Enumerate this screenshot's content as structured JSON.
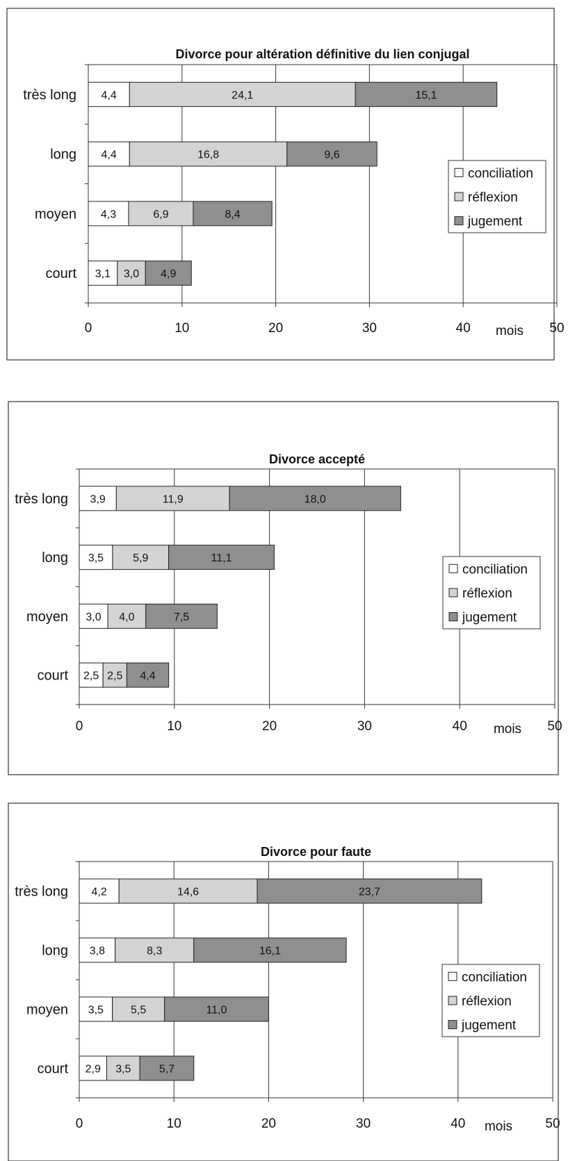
{
  "chart_data": [
    {
      "type": "bar",
      "orientation": "horizontal",
      "stacked": true,
      "title": "Divorce pour altération définitive du lien conjugal",
      "xlabel": "mois",
      "xlim": [
        0,
        50
      ],
      "x_ticks": [
        "0",
        "10",
        "20",
        "30",
        "40",
        "50"
      ],
      "grid": true,
      "legend_position": "right",
      "categories": [
        "très long",
        "long",
        "moyen",
        "court"
      ],
      "series": [
        {
          "name": "conciliation",
          "color": "#ffffff",
          "values": [
            4.4,
            4.4,
            4.3,
            3.1
          ],
          "labels": [
            "4,4",
            "4,4",
            "4,3",
            "3,1"
          ]
        },
        {
          "name": "réflexion",
          "color": "#d3d3d3",
          "values": [
            24.1,
            16.8,
            6.9,
            3.0
          ],
          "labels": [
            "24,1",
            "16,8",
            "6,9",
            "3,0"
          ]
        },
        {
          "name": "jugement",
          "color": "#8f8f8f",
          "values": [
            15.1,
            9.6,
            8.4,
            4.9
          ],
          "labels": [
            "15,1",
            "9,6",
            "8,4",
            "4,9"
          ]
        }
      ]
    },
    {
      "type": "bar",
      "orientation": "horizontal",
      "stacked": true,
      "title": "Divorce accepté",
      "xlabel": "mois",
      "xlim": [
        0,
        50
      ],
      "x_ticks": [
        "0",
        "10",
        "20",
        "30",
        "40",
        "50"
      ],
      "grid": true,
      "legend_position": "right",
      "categories": [
        "très long",
        "long",
        "moyen",
        "court"
      ],
      "series": [
        {
          "name": "conciliation",
          "color": "#ffffff",
          "values": [
            3.9,
            3.5,
            3.0,
            2.5
          ],
          "labels": [
            "3,9",
            "3,5",
            "3,0",
            "2,5"
          ]
        },
        {
          "name": "réflexion",
          "color": "#d3d3d3",
          "values": [
            11.9,
            5.9,
            4.0,
            2.5
          ],
          "labels": [
            "11,9",
            "5,9",
            "4,0",
            "2,5"
          ]
        },
        {
          "name": "jugement",
          "color": "#8f8f8f",
          "values": [
            18.0,
            11.1,
            7.5,
            4.4
          ],
          "labels": [
            "18,0",
            "11,1",
            "7,5",
            "4,4"
          ]
        }
      ]
    },
    {
      "type": "bar",
      "orientation": "horizontal",
      "stacked": true,
      "title": "Divorce pour faute",
      "xlabel": "mois",
      "xlim": [
        0,
        50
      ],
      "x_ticks": [
        "0",
        "10",
        "20",
        "30",
        "40",
        "50"
      ],
      "grid": true,
      "legend_position": "right",
      "categories": [
        "très long",
        "long",
        "moyen",
        "court"
      ],
      "series": [
        {
          "name": "conciliation",
          "color": "#ffffff",
          "values": [
            4.2,
            3.8,
            3.5,
            2.9
          ],
          "labels": [
            "4,2",
            "3,8",
            "3,5",
            "2,9"
          ]
        },
        {
          "name": "réflexion",
          "color": "#d3d3d3",
          "values": [
            14.6,
            8.3,
            5.5,
            3.5
          ],
          "labels": [
            "14,6",
            "8,3",
            "5,5",
            "3,5"
          ]
        },
        {
          "name": "jugement",
          "color": "#8f8f8f",
          "values": [
            23.7,
            16.1,
            11.0,
            5.7
          ],
          "labels": [
            "23,7",
            "16,1",
            "11,0",
            "5,7"
          ]
        }
      ]
    }
  ]
}
